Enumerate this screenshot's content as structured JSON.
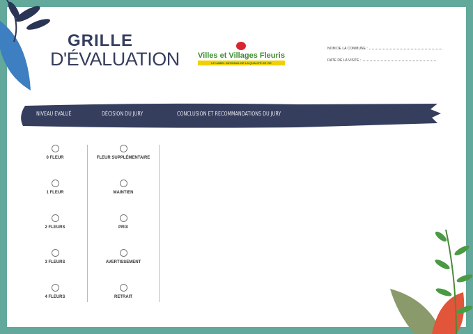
{
  "header": {
    "title_line1": "GRILLE",
    "title_line2": "D'ÉVALUATION"
  },
  "logo": {
    "name": "Villes et Villages Fleuris",
    "tagline": "LE LABEL NATIONAL DE LA QUALITÉ DE VIE"
  },
  "fields": [
    {
      "label": "NOM DE LA COMMUNE :"
    },
    {
      "label": "DATE DE LA VISITE :"
    }
  ],
  "band": {
    "columns": [
      "NIVEAU EVALUÉ",
      "DÉCISION DU JURY",
      "CONCLUSION ET RECOMMANDATIONS DU JURY"
    ]
  },
  "colors": {
    "border": "#62a89b",
    "navy": "#363e5e"
  },
  "levels": [
    "0 FLEUR",
    "1 FLEUR",
    "2 FLEURS",
    "3 FLEURS",
    "4 FLEURS"
  ],
  "decisions": [
    "FLEUR SUPPLÉMENTAIRE",
    "MAINTIEN",
    "PRIX",
    "AVERTISSEMENT",
    "RETRAIT"
  ]
}
